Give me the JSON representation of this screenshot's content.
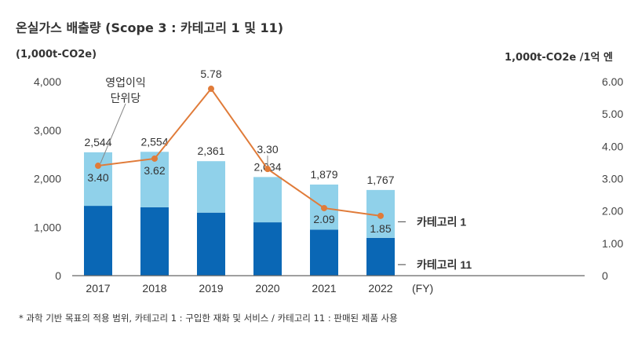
{
  "title": "온실가스 배출량 (Scope 3 : 카테고리 1 및 11)",
  "footnote": "* 과학 기반 목표의 적용 범위, 카테고리 1 : 구입한 재화 및 서비스 / 카테고리 11 : 판매된 제품 사용",
  "colors": {
    "cat1": "#90d1ea",
    "cat11": "#0a67b5",
    "line": "#e07b39"
  },
  "chart_data": {
    "type": "bar",
    "stacked": true,
    "categories": [
      "2017",
      "2018",
      "2019",
      "2020",
      "2021",
      "2022"
    ],
    "x_suffix": "(FY)",
    "ylabel_left": "(1,000t-CO2e)",
    "ylabel_right": "1,000t-CO2e /1억 엔",
    "ylim_left": [
      0,
      4000
    ],
    "yticks_left": [
      "0",
      "1,000",
      "2,000",
      "3,000",
      "4,000"
    ],
    "ylim_right": [
      0,
      6
    ],
    "yticks_right": [
      "0",
      "1.00",
      "2.00",
      "3.00",
      "4.00",
      "5.00",
      "6.00"
    ],
    "series": [
      {
        "name": "카테고리 11",
        "values": [
          1440,
          1410,
          1300,
          1100,
          950,
          780
        ]
      },
      {
        "name": "카테고리 1",
        "values": [
          1104,
          1144,
          1061,
          934,
          929,
          987
        ]
      }
    ],
    "totals": [
      2544,
      2554,
      2361,
      2034,
      1879,
      1767
    ],
    "total_labels": [
      "2,544",
      "2,554",
      "2,361",
      "2,034",
      "1,879",
      "1,767"
    ],
    "line": {
      "name": "영업이익 단위당",
      "name_lines": [
        "영업이익",
        "단위당"
      ],
      "values": [
        3.4,
        3.62,
        5.78,
        3.3,
        2.09,
        1.85
      ],
      "labels": [
        "3.40",
        "3.62",
        "5.78",
        "3.30",
        "2.09",
        "1.85"
      ]
    }
  }
}
